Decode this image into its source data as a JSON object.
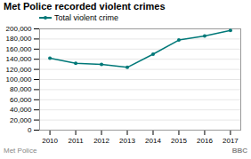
{
  "chart_data": {
    "type": "line",
    "title": "Met Police recorded violent crimes",
    "x": [
      2010,
      2011,
      2012,
      2013,
      2014,
      2015,
      2016,
      2017
    ],
    "series": [
      {
        "name": "Total violent crime",
        "color": "#007878",
        "marker": "circle",
        "values": [
          142000,
          132000,
          130000,
          124000,
          150000,
          178000,
          186000,
          197000
        ]
      }
    ],
    "xlim": [
      2009.6,
      2017.4
    ],
    "xticks": [
      2010,
      2011,
      2012,
      2013,
      2014,
      2015,
      2016,
      2017
    ],
    "ylim": [
      0,
      200000
    ],
    "yticks": [
      0,
      {
        "value": 20000,
        "label": "20,000"
      },
      {
        "value": 40000,
        "label": "40,000"
      },
      {
        "value": 60000,
        "label": "60,000"
      },
      {
        "value": 80000,
        "label": "80,000"
      },
      {
        "value": 100000,
        "label": "100,000"
      },
      {
        "value": 120000,
        "label": "120,000"
      },
      {
        "value": 140000,
        "label": "140,000"
      },
      {
        "value": 160000,
        "label": "160,000"
      },
      {
        "value": 180000,
        "label": "180,000"
      },
      {
        "value": 200000,
        "label": "200,000"
      }
    ],
    "grid": true,
    "legend": "upper left",
    "annotations": [
      "Met Police",
      "BBC"
    ]
  }
}
